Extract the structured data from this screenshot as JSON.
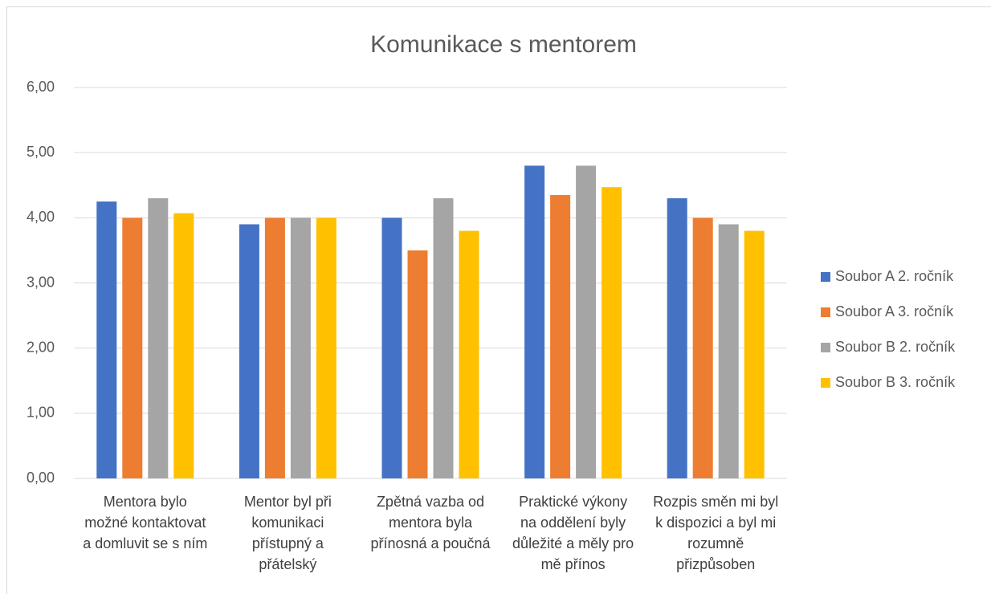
{
  "chart_data": {
    "type": "bar",
    "title": "Komunikace s mentorem",
    "categories": [
      "Mentora bylo možné kontaktovat a domluvit se s ním",
      "Mentor byl při komunikaci přístupný a přátelský",
      "Zpětná vazba od mentora byla přínosná a poučná",
      "Praktické výkony na oddělení byly důležité a měly pro mě přínos",
      "Rozpis směn mi byl k dispozici a byl mi rozumně přizpůsoben"
    ],
    "series": [
      {
        "name": "Soubor A 2. ročník",
        "color": "#4472c4",
        "values": [
          4.25,
          3.9,
          4.0,
          4.8,
          4.3
        ]
      },
      {
        "name": "Soubor A 3. ročník",
        "color": "#ed7d31",
        "values": [
          4.0,
          4.0,
          3.5,
          4.35,
          4.0
        ]
      },
      {
        "name": "Soubor B 2. ročník",
        "color": "#a5a5a5",
        "values": [
          4.3,
          4.0,
          4.3,
          4.8,
          3.9
        ]
      },
      {
        "name": "Soubor B 3. ročník",
        "color": "#ffc000",
        "values": [
          4.07,
          4.0,
          3.8,
          4.47,
          3.8
        ]
      }
    ],
    "ylim": [
      0,
      6
    ],
    "yticks": [
      {
        "value": 0,
        "label": "0,00"
      },
      {
        "value": 1,
        "label": "1,00"
      },
      {
        "value": 2,
        "label": "2,00"
      },
      {
        "value": 3,
        "label": "3,00"
      },
      {
        "value": 4,
        "label": "4,00"
      },
      {
        "value": 5,
        "label": "5,00"
      },
      {
        "value": 6,
        "label": "6,00"
      }
    ],
    "grid": true,
    "legend": "right"
  }
}
